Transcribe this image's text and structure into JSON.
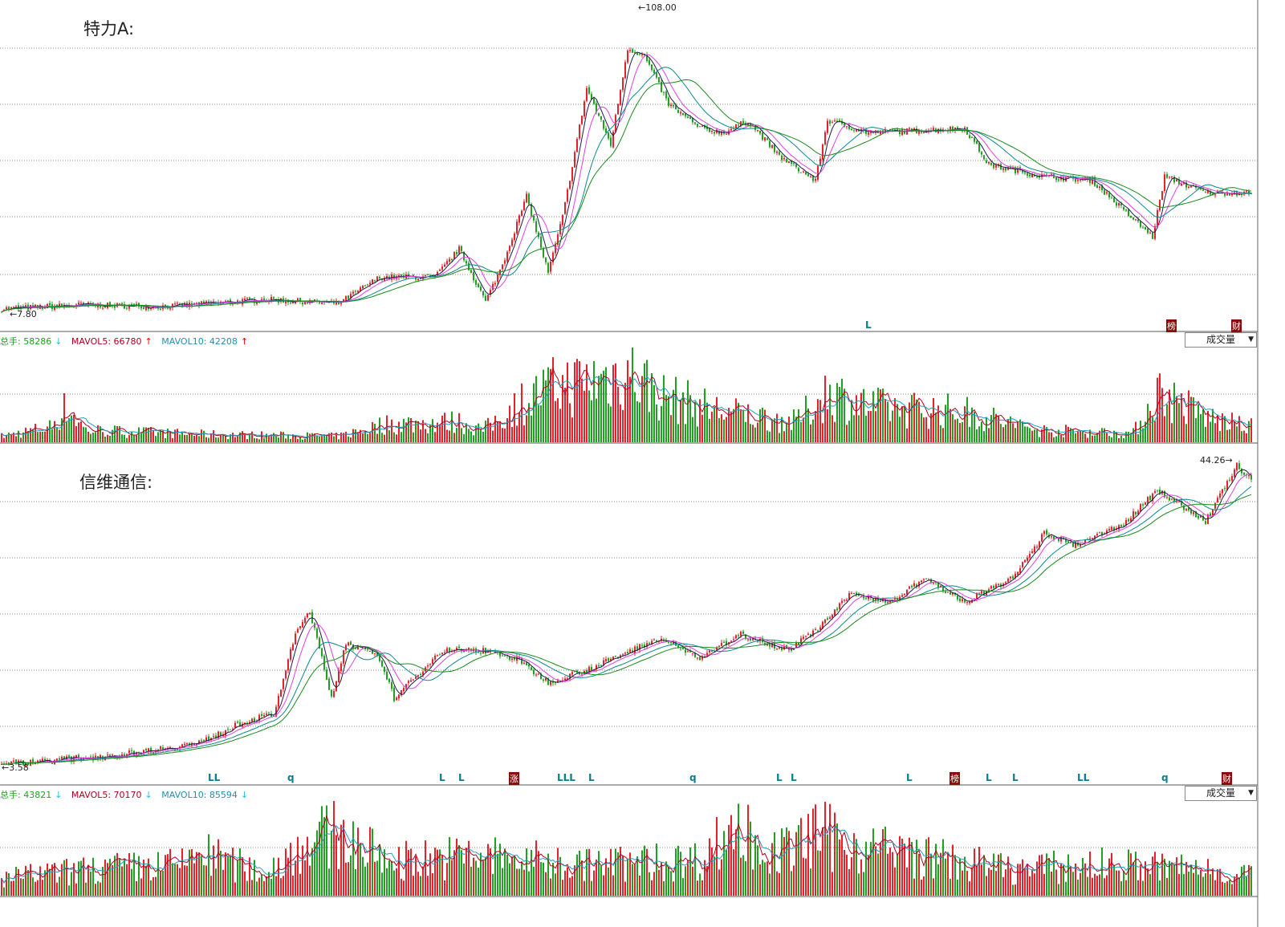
{
  "colors": {
    "up": "#e8202a",
    "down": "#20a020",
    "ma5": "#1a1a4a",
    "ma10": "#e040e0",
    "ma20": "#0a8a8a",
    "ma30": "#1a8a1a",
    "grid": "#888888",
    "vma5": "#b00020",
    "vma10": "#20a0c0"
  },
  "chart_data": [
    {
      "type": "candlestick",
      "title": "特力A:",
      "bars": 520,
      "scale": "log",
      "ylim": [
        7.8,
        108.0
      ],
      "max_label": "108.00",
      "min_label": "7.80",
      "price_anchors": [
        [
          0,
          7.97
        ],
        [
          33,
          8.25
        ],
        [
          67,
          8.13
        ],
        [
          110,
          8.65
        ],
        [
          140,
          8.36
        ],
        [
          157,
          10.5
        ],
        [
          180,
          10.5
        ],
        [
          190,
          13.4
        ],
        [
          201,
          8.5
        ],
        [
          208,
          11.7
        ],
        [
          218,
          21.1
        ],
        [
          227,
          10.9
        ],
        [
          233,
          17.7
        ],
        [
          243,
          53.9
        ],
        [
          253,
          33.1
        ],
        [
          260,
          76.3
        ],
        [
          267,
          71.2
        ],
        [
          277,
          46.9
        ],
        [
          290,
          38.1
        ],
        [
          300,
          36.7
        ],
        [
          310,
          40.8
        ],
        [
          323,
          29.9
        ],
        [
          338,
          24.2
        ],
        [
          343,
          40.8
        ],
        [
          360,
          36.7
        ],
        [
          400,
          38.1
        ],
        [
          410,
          27.8
        ],
        [
          433,
          25.1
        ],
        [
          453,
          24.2
        ],
        [
          467,
          18.4
        ],
        [
          478,
          14.9
        ],
        [
          483,
          25.1
        ],
        [
          500,
          21.8
        ],
        [
          517,
          21.8
        ]
      ],
      "volume_anchors": [
        [
          0,
          6000
        ],
        [
          20,
          15000
        ],
        [
          27,
          35000
        ],
        [
          35,
          12000
        ],
        [
          80,
          8000
        ],
        [
          140,
          6000
        ],
        [
          160,
          18000
        ],
        [
          190,
          20000
        ],
        [
          200,
          12000
        ],
        [
          215,
          38000
        ],
        [
          230,
          55000
        ],
        [
          245,
          60000
        ],
        [
          260,
          70000
        ],
        [
          275,
          45000
        ],
        [
          300,
          30000
        ],
        [
          330,
          20000
        ],
        [
          343,
          50000
        ],
        [
          360,
          35000
        ],
        [
          400,
          30000
        ],
        [
          430,
          12000
        ],
        [
          470,
          9000
        ],
        [
          480,
          50000
        ],
        [
          500,
          25000
        ],
        [
          517,
          15000
        ]
      ],
      "volume_header": {
        "total_label": "总手: 58286",
        "total_arrow": "↓",
        "mavol5": "MAVOL5: 66780",
        "mavol5_arrow": "↑",
        "mavol10": "MAVOL10: 42208",
        "mavol10_arrow": "↑"
      },
      "volume_select": "成交量",
      "markers": [
        {
          "bar": 360,
          "text": "L",
          "boxed": false
        },
        {
          "bar": 485,
          "text": "榜",
          "boxed": true
        },
        {
          "bar": 512,
          "text": "财",
          "boxed": true
        }
      ]
    },
    {
      "type": "candlestick",
      "title": "信维通信:",
      "bars": 520,
      "scale": "log",
      "ylim": [
        3.58,
        44.26
      ],
      "max_label": "44.26",
      "min_label": "3.58",
      "price_anchors": [
        [
          0,
          3.6
        ],
        [
          50,
          3.9
        ],
        [
          83,
          4.31
        ],
        [
          100,
          5.09
        ],
        [
          113,
          5.43
        ],
        [
          122,
          10.5
        ],
        [
          128,
          12.8
        ],
        [
          137,
          6.2
        ],
        [
          143,
          9.86
        ],
        [
          157,
          8.63
        ],
        [
          163,
          6.2
        ],
        [
          173,
          7.57
        ],
        [
          183,
          9.22
        ],
        [
          200,
          9.22
        ],
        [
          213,
          8.63
        ],
        [
          227,
          7.08
        ],
        [
          247,
          8.08
        ],
        [
          273,
          10.2
        ],
        [
          290,
          8.63
        ],
        [
          307,
          10.5
        ],
        [
          327,
          9.22
        ],
        [
          340,
          11.2
        ],
        [
          353,
          14.7
        ],
        [
          370,
          13.7
        ],
        [
          383,
          16.7
        ],
        [
          400,
          13.7
        ],
        [
          420,
          16.7
        ],
        [
          433,
          24.1
        ],
        [
          447,
          21.8
        ],
        [
          467,
          26.6
        ],
        [
          480,
          34.6
        ],
        [
          500,
          26.6
        ],
        [
          513,
          42.3
        ],
        [
          517,
          38.2
        ]
      ],
      "volume_anchors": [
        [
          0,
          20000
        ],
        [
          40,
          30000
        ],
        [
          75,
          35000
        ],
        [
          80,
          50000
        ],
        [
          110,
          25000
        ],
        [
          125,
          60000
        ],
        [
          140,
          70000
        ],
        [
          160,
          40000
        ],
        [
          200,
          45000
        ],
        [
          240,
          35000
        ],
        [
          290,
          40000
        ],
        [
          305,
          80000
        ],
        [
          320,
          45000
        ],
        [
          340,
          70000
        ],
        [
          350,
          60000
        ],
        [
          380,
          45000
        ],
        [
          420,
          30000
        ],
        [
          460,
          35000
        ],
        [
          500,
          30000
        ],
        [
          517,
          25000
        ]
      ],
      "volume_header": {
        "total_label": "总手: 43821",
        "total_arrow": "↓",
        "mavol5": "MAVOL5: 70170",
        "mavol5_arrow": "↓",
        "mavol10": "MAVOL10: 85594",
        "mavol10_arrow": "↓"
      },
      "volume_select": "成交量",
      "markers": [
        {
          "bar": 87,
          "text": "LL",
          "boxed": false
        },
        {
          "bar": 120,
          "text": "q",
          "boxed": false
        },
        {
          "bar": 183,
          "text": "L",
          "boxed": false
        },
        {
          "bar": 191,
          "text": "L",
          "boxed": false
        },
        {
          "bar": 212,
          "text": "涨",
          "boxed": true
        },
        {
          "bar": 232,
          "text": "LLL",
          "boxed": false
        },
        {
          "bar": 245,
          "text": "L",
          "boxed": false
        },
        {
          "bar": 287,
          "text": "q",
          "boxed": false
        },
        {
          "bar": 323,
          "text": "L",
          "boxed": false
        },
        {
          "bar": 329,
          "text": "L",
          "boxed": false
        },
        {
          "bar": 377,
          "text": "L",
          "boxed": false
        },
        {
          "bar": 395,
          "text": "榜",
          "boxed": true
        },
        {
          "bar": 410,
          "text": "L",
          "boxed": false
        },
        {
          "bar": 421,
          "text": "L",
          "boxed": false
        },
        {
          "bar": 448,
          "text": "LL",
          "boxed": false
        },
        {
          "bar": 483,
          "text": "q",
          "boxed": false
        },
        {
          "bar": 508,
          "text": "财",
          "boxed": true
        }
      ]
    }
  ]
}
